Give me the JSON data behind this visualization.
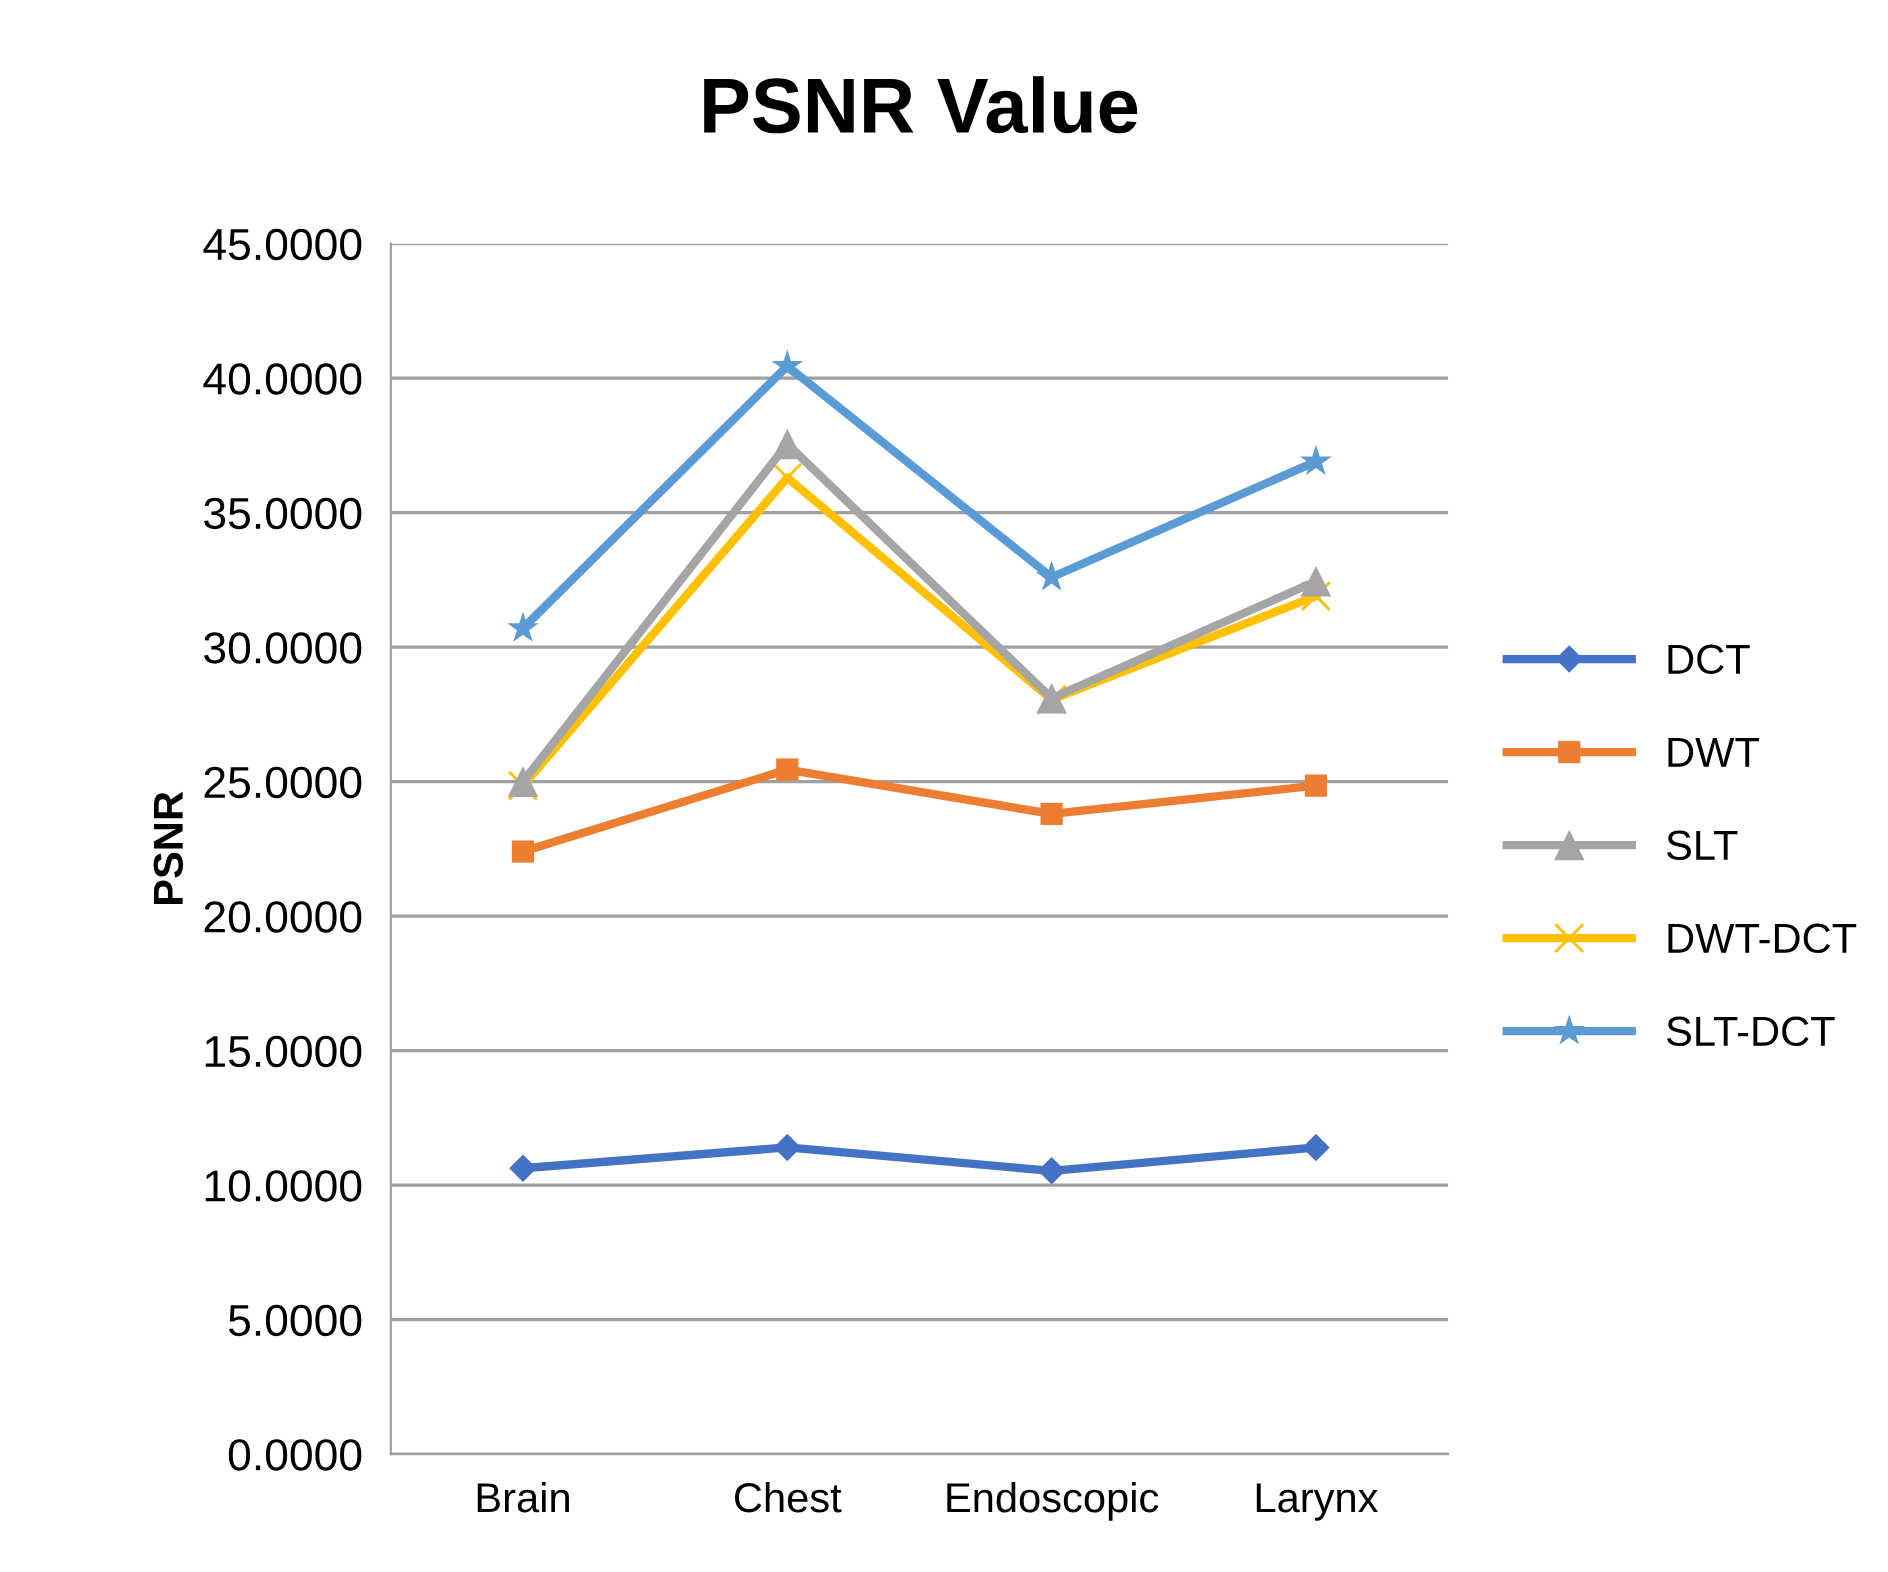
{
  "chart_data": {
    "type": "line",
    "title": "PSNR Value",
    "ylabel": "PSNR",
    "categories": [
      "Brain",
      "Chest",
      "Endoscopic",
      "Larynx"
    ],
    "series": [
      {
        "name": "DCT",
        "color": "#4472c4",
        "marker": "diamond",
        "values": [
          10.63,
          11.4,
          10.53,
          11.4
        ]
      },
      {
        "name": "DWT",
        "color": "#ed7d31",
        "marker": "square",
        "values": [
          22.4,
          25.45,
          23.8,
          24.85
        ]
      },
      {
        "name": "SLT",
        "color": "#a5a5a5",
        "marker": "triangle",
        "values": [
          25.0,
          37.55,
          28.1,
          32.45
        ]
      },
      {
        "name": "DWT-DCT",
        "color": "#ffc000",
        "marker": "cross",
        "values": [
          24.85,
          36.3,
          28.05,
          31.9
        ]
      },
      {
        "name": "SLT-DCT",
        "color": "#5b9bd5",
        "marker": "star",
        "values": [
          30.7,
          40.45,
          32.6,
          36.9
        ]
      }
    ],
    "ylim": [
      0,
      45
    ],
    "yticks": [
      {
        "value": 0,
        "label": "0.0000"
      },
      {
        "value": 5,
        "label": "5.0000"
      },
      {
        "value": 10,
        "label": "10.0000"
      },
      {
        "value": 15,
        "label": "15.0000"
      },
      {
        "value": 20,
        "label": "20.0000"
      },
      {
        "value": 25,
        "label": "25.0000"
      },
      {
        "value": 30,
        "label": "30.0000"
      },
      {
        "value": 35,
        "label": "35.0000"
      },
      {
        "value": 40,
        "label": "40.0000"
      },
      {
        "value": 45,
        "label": "45.0000"
      }
    ],
    "grid": "y",
    "legend": "right",
    "line_style": "solid"
  }
}
